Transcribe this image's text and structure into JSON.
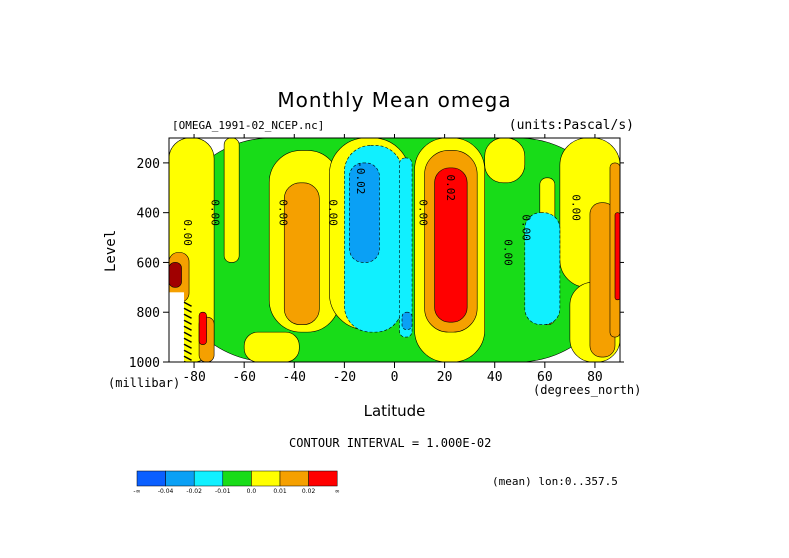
{
  "title": "Monthly Mean omega",
  "file_label": "[OMEGA_1991-02_NCEP.nc]",
  "units_label": "(units:Pascal/s)",
  "ylabel": "Level",
  "yunit": "(millibar)",
  "xlabel": "Latitude",
  "xunit": "(degrees_north)",
  "contour_interval": "CONTOUR INTERVAL = 1.000E-02",
  "mean_label": "(mean) lon:0..357.5",
  "chart_data": {
    "type": "heatmap",
    "title": "Monthly Mean omega",
    "xlabel": "Latitude",
    "ylabel": "Level",
    "xlim": [
      -90,
      90
    ],
    "ylim": [
      1000,
      100
    ],
    "xticks": [
      -80,
      -60,
      -40,
      -20,
      0,
      20,
      40,
      60,
      80
    ],
    "yticks": [
      200,
      400,
      600,
      800,
      1000
    ],
    "xtick_labels": [
      "-80",
      "-60",
      "-40",
      "-20",
      "0",
      "20",
      "40",
      "60",
      "80"
    ],
    "ytick_labels": [
      "200",
      "400",
      "600",
      "800",
      "1000"
    ],
    "colors": {
      "c1": "#0a5fff",
      "c2": "#0aa0f5",
      "c3": "#10f0ff",
      "c4": "#18dc18",
      "c5": "#ffff00",
      "c6": "#f5a000",
      "c7": "#ff0000",
      "c8": "#a00000"
    },
    "colorbar": {
      "colors": [
        "#0a5fff",
        "#0aa0f5",
        "#10f0ff",
        "#18dc18",
        "#ffff00",
        "#f5a000",
        "#ff0000"
      ],
      "labels": [
        "-∞",
        "-0.04",
        "-0.02",
        "-0.01",
        "0.0",
        "0.01",
        "0.02",
        "∞"
      ]
    },
    "regions": [
      {
        "color": "c4",
        "x": [
          -90,
          90
        ],
        "y": [
          100,
          1000
        ]
      },
      {
        "color": "c5",
        "x": [
          -90,
          -72
        ],
        "y": [
          100,
          1000
        ]
      },
      {
        "color": "c5",
        "x": [
          -68,
          -62
        ],
        "y": [
          100,
          600
        ]
      },
      {
        "color": "c5",
        "x": [
          -50,
          -22
        ],
        "y": [
          150,
          880
        ]
      },
      {
        "color": "c5",
        "x": [
          -60,
          -38
        ],
        "y": [
          880,
          1000
        ]
      },
      {
        "color": "c5",
        "x": [
          -26,
          6
        ],
        "y": [
          100,
          870
        ]
      },
      {
        "color": "c5",
        "x": [
          8,
          36
        ],
        "y": [
          100,
          1000
        ]
      },
      {
        "color": "c5",
        "x": [
          36,
          52
        ],
        "y": [
          100,
          280
        ]
      },
      {
        "color": "c5",
        "x": [
          58,
          64
        ],
        "y": [
          260,
          850
        ]
      },
      {
        "color": "c5",
        "x": [
          66,
          90
        ],
        "y": [
          100,
          700
        ]
      },
      {
        "color": "c5",
        "x": [
          70,
          90
        ],
        "y": [
          680,
          1000
        ]
      },
      {
        "color": "c6",
        "x": [
          -44,
          -30
        ],
        "y": [
          280,
          850
        ]
      },
      {
        "color": "c6",
        "x": [
          12,
          33
        ],
        "y": [
          150,
          880
        ]
      },
      {
        "color": "c6",
        "x": [
          78,
          88
        ],
        "y": [
          360,
          980
        ]
      },
      {
        "color": "c6",
        "x": [
          -90,
          -82
        ],
        "y": [
          560,
          760
        ]
      },
      {
        "color": "c6",
        "x": [
          -78,
          -72
        ],
        "y": [
          820,
          1000
        ]
      },
      {
        "color": "c6",
        "x": [
          86,
          90
        ],
        "y": [
          200,
          900
        ]
      },
      {
        "color": "c3",
        "x": [
          -20,
          3
        ],
        "y": [
          130,
          880
        ]
      },
      {
        "color": "c3",
        "x": [
          2,
          7
        ],
        "y": [
          180,
          900
        ]
      },
      {
        "color": "c3",
        "x": [
          52,
          66
        ],
        "y": [
          400,
          850
        ]
      },
      {
        "color": "c2",
        "x": [
          -18,
          -6
        ],
        "y": [
          200,
          600
        ]
      },
      {
        "color": "c2",
        "x": [
          3,
          7
        ],
        "y": [
          800,
          870
        ]
      },
      {
        "color": "c7",
        "x": [
          16,
          29
        ],
        "y": [
          220,
          840
        ]
      },
      {
        "color": "c7",
        "x": [
          88,
          90
        ],
        "y": [
          400,
          750
        ]
      },
      {
        "color": "c7",
        "x": [
          -78,
          -75
        ],
        "y": [
          800,
          930
        ]
      },
      {
        "color": "c8",
        "x": [
          -90,
          -85
        ],
        "y": [
          600,
          700
        ]
      }
    ],
    "contour_labels": [
      "0.00",
      "0.00",
      "0.00",
      "0.00",
      "-0.02",
      "0.00",
      "0.02",
      "0.00",
      "0.00",
      "0.00"
    ]
  }
}
